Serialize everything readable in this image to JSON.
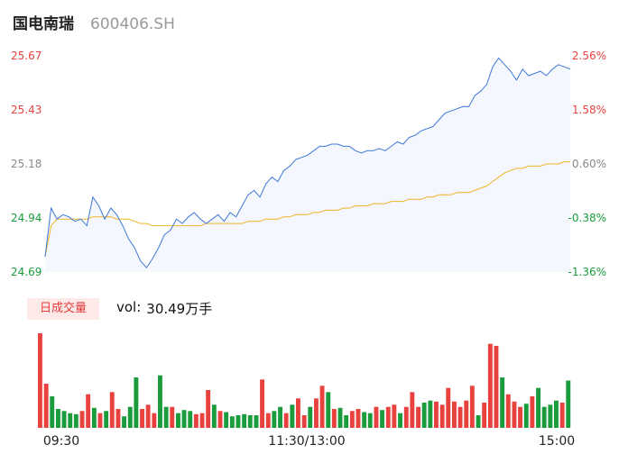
{
  "header": {
    "name": "国电南瑞",
    "code": "600406.SH"
  },
  "volume_panel": {
    "tab_label": "日成交量",
    "vol_prefix": "vol:",
    "vol_value": "30.49万手"
  },
  "colors": {
    "price_line": "#3f78d8",
    "avg_line": "#f0b429",
    "area_fill": "#f4f7fd",
    "up": "#e8423f",
    "down": "#1a9c3d",
    "axis": "#444444"
  },
  "chart_data": {
    "type": "line",
    "price_ticks": [
      "25.67",
      "25.43",
      "25.18",
      "24.94",
      "24.69"
    ],
    "pct_ticks": [
      "2.56%",
      "1.58%",
      "0.60%",
      "-0.38%",
      "-1.36%"
    ],
    "time_ticks": [
      "09:30",
      "11:30/13:00",
      "15:00"
    ],
    "ylim": [
      24.69,
      25.67
    ],
    "series": [
      {
        "key": "price",
        "values": [
          24.76,
          24.98,
          24.93,
          24.95,
          24.94,
          24.92,
          24.93,
          24.9,
          25.03,
          24.99,
          24.93,
          24.98,
          24.95,
          24.9,
          24.84,
          24.8,
          24.74,
          24.71,
          24.75,
          24.8,
          24.86,
          24.88,
          24.93,
          24.91,
          24.94,
          24.96,
          24.93,
          24.91,
          24.93,
          24.95,
          24.92,
          24.96,
          24.94,
          24.99,
          25.04,
          25.06,
          25.03,
          25.09,
          25.12,
          25.1,
          25.15,
          25.17,
          25.2,
          25.21,
          25.22,
          25.24,
          25.26,
          25.26,
          25.27,
          25.27,
          25.26,
          25.26,
          25.24,
          25.23,
          25.24,
          25.24,
          25.25,
          25.24,
          25.26,
          25.28,
          25.27,
          25.3,
          25.31,
          25.33,
          25.34,
          25.35,
          25.38,
          25.41,
          25.42,
          25.43,
          25.44,
          25.44,
          25.49,
          25.51,
          25.54,
          25.62,
          25.66,
          25.63,
          25.6,
          25.56,
          25.61,
          25.58,
          25.59,
          25.6,
          25.58,
          25.61,
          25.63,
          25.62,
          25.61
        ]
      },
      {
        "key": "avg",
        "values": [
          24.76,
          24.9,
          24.93,
          24.93,
          24.93,
          24.93,
          24.93,
          24.93,
          24.94,
          24.94,
          24.94,
          24.94,
          24.93,
          24.93,
          24.93,
          24.92,
          24.91,
          24.91,
          24.9,
          24.9,
          24.9,
          24.9,
          24.9,
          24.9,
          24.9,
          24.9,
          24.9,
          24.91,
          24.91,
          24.91,
          24.91,
          24.91,
          24.91,
          24.91,
          24.92,
          24.92,
          24.92,
          24.93,
          24.93,
          24.93,
          24.94,
          24.94,
          24.95,
          24.95,
          24.95,
          24.96,
          24.96,
          24.97,
          24.97,
          24.97,
          24.98,
          24.98,
          24.99,
          24.99,
          24.99,
          25.0,
          25.0,
          25.0,
          25.01,
          25.01,
          25.01,
          25.02,
          25.02,
          25.02,
          25.03,
          25.03,
          25.04,
          25.04,
          25.04,
          25.05,
          25.05,
          25.05,
          25.06,
          25.07,
          25.08,
          25.1,
          25.12,
          25.14,
          25.15,
          25.16,
          25.16,
          25.17,
          25.17,
          25.17,
          25.18,
          25.18,
          25.18,
          25.19,
          25.19
        ]
      }
    ],
    "volume": {
      "up": [
        true,
        true,
        false,
        false,
        false,
        false,
        false,
        true,
        true,
        false,
        true,
        false,
        true,
        true,
        false,
        false,
        false,
        true,
        true,
        true,
        false,
        false,
        true,
        false,
        false,
        false,
        true,
        true,
        true,
        false,
        true,
        false,
        false,
        false,
        false,
        false,
        false,
        true,
        true,
        false,
        false,
        true,
        false,
        true,
        true,
        false,
        true,
        true,
        false,
        true,
        false,
        false,
        true,
        true,
        false,
        false,
        true,
        false,
        true,
        true,
        false,
        true,
        true,
        true,
        false,
        false,
        true,
        true,
        true,
        true,
        true,
        true,
        true,
        false,
        true,
        true,
        true,
        false,
        true,
        true,
        true,
        false,
        true,
        false,
        false,
        false,
        false,
        true,
        false
      ],
      "values": [
        9.0,
        4.2,
        3.0,
        1.8,
        1.6,
        1.4,
        1.3,
        1.6,
        3.2,
        1.9,
        1.4,
        1.6,
        3.4,
        1.8,
        1.1,
        2.0,
        4.8,
        1.8,
        2.2,
        1.4,
        5.0,
        2.0,
        2.0,
        1.4,
        1.7,
        1.6,
        1.3,
        1.4,
        3.6,
        2.2,
        1.6,
        1.5,
        1.1,
        1.2,
        1.3,
        1.2,
        1.2,
        4.6,
        1.4,
        1.6,
        2.0,
        1.4,
        2.2,
        2.8,
        1.2,
        2.0,
        2.8,
        4.0,
        3.4,
        1.8,
        1.9,
        1.2,
        1.6,
        1.8,
        1.5,
        1.4,
        2.0,
        1.7,
        2.0,
        2.2,
        1.4,
        2.0,
        3.4,
        2.0,
        2.4,
        2.6,
        2.5,
        2.2,
        3.8,
        2.5,
        2.0,
        2.6,
        4.0,
        1.2,
        2.4,
        8.0,
        7.8,
        4.8,
        3.2,
        2.5,
        2.0,
        2.3,
        3.0,
        3.8,
        2.0,
        2.2,
        2.6,
        2.4,
        4.5
      ]
    }
  }
}
